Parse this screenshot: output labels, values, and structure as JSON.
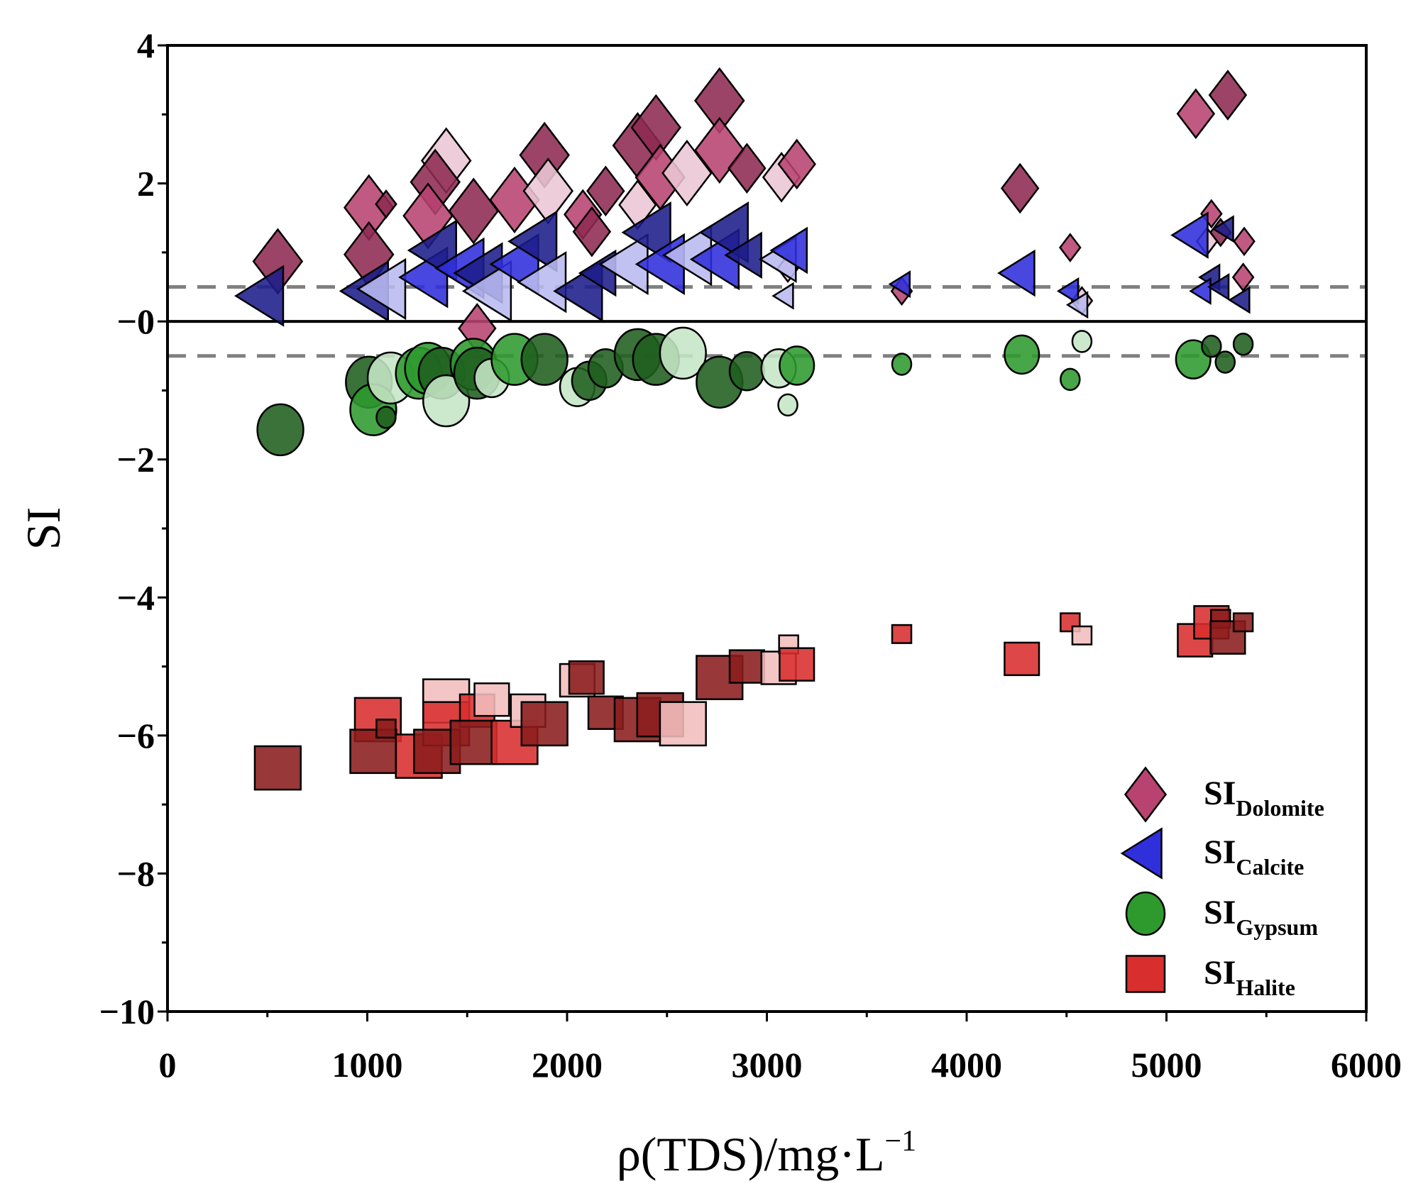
{
  "chart_data": {
    "type": "scatter",
    "title": "",
    "xlabel": "ρ(TDS)/mg·L",
    "xlabel_sup": "−1",
    "ylabel": "SI",
    "xlim": [
      0,
      6000
    ],
    "ylim": [
      -10,
      4
    ],
    "xticks": [
      "0",
      "1000",
      "2000",
      "3000",
      "4000",
      "5000",
      "6000"
    ],
    "yticks": [
      "4",
      "2",
      "−0",
      "−2",
      "−4",
      "−6",
      "−8",
      "−10"
    ],
    "xtick_values": [
      0,
      1000,
      2000,
      3000,
      4000,
      5000,
      6000
    ],
    "ytick_values": [
      4,
      2,
      0,
      -2,
      -4,
      -6,
      -8,
      -10
    ],
    "reference_lines": [
      {
        "y": 0.5,
        "style": "dashed",
        "color": "#808080"
      },
      {
        "y": 0,
        "style": "solid",
        "color": "#000000"
      },
      {
        "y": -0.5,
        "style": "dashed",
        "color": "#808080"
      }
    ],
    "legend_position": "bottom-right",
    "series": [
      {
        "name": "SI",
        "sub": "Dolomite",
        "marker": "diamond",
        "colors": {
          "dark": "#8e2a52",
          "mid": "#b84371",
          "light": "#ebc6d5"
        },
        "points": [
          [
            552,
            0.87,
            "dark",
            "L"
          ],
          [
            1008,
            1.65,
            "mid",
            "L"
          ],
          [
            1094,
            1.7,
            "dark",
            "S"
          ],
          [
            1008,
            0.97,
            "dark",
            "L"
          ],
          [
            1395,
            2.33,
            "light",
            "L"
          ],
          [
            1340,
            2.02,
            "dark",
            "L"
          ],
          [
            1304,
            1.53,
            "mid",
            "L"
          ],
          [
            1532,
            1.6,
            "dark",
            "L"
          ],
          [
            1550,
            -0.1,
            "mid",
            "M"
          ],
          [
            1737,
            1.76,
            "mid",
            "L"
          ],
          [
            1887,
            2.41,
            "dark",
            "L"
          ],
          [
            1905,
            1.89,
            "light",
            "L"
          ],
          [
            2079,
            1.55,
            "mid",
            "M"
          ],
          [
            2124,
            1.3,
            "dark",
            "M"
          ],
          [
            2193,
            1.89,
            "dark",
            "M"
          ],
          [
            2353,
            1.69,
            "light",
            "M"
          ],
          [
            2353,
            2.55,
            "dark",
            "L"
          ],
          [
            2445,
            2.81,
            "dark",
            "L"
          ],
          [
            2466,
            2.09,
            "mid",
            "L"
          ],
          [
            2600,
            2.15,
            "light",
            "L"
          ],
          [
            2763,
            3.2,
            "dark",
            "L"
          ],
          [
            2763,
            2.48,
            "mid",
            "L"
          ],
          [
            2900,
            2.22,
            "dark",
            "M"
          ],
          [
            3073,
            2.09,
            "light",
            "M"
          ],
          [
            3150,
            2.28,
            "mid",
            "M"
          ],
          [
            3105,
            0.77,
            "light",
            "S"
          ],
          [
            3675,
            0.44,
            "mid",
            "S"
          ],
          [
            4267,
            1.93,
            "dark",
            "M"
          ],
          [
            4518,
            1.07,
            "mid",
            "S"
          ],
          [
            4577,
            0.3,
            "light",
            "S"
          ],
          [
            5147,
            3.01,
            "mid",
            "M"
          ],
          [
            5307,
            3.28,
            "dark",
            "M"
          ],
          [
            5225,
            1.56,
            "mid",
            "S"
          ],
          [
            5271,
            1.29,
            "dark",
            "S"
          ],
          [
            5203,
            1.16,
            "light",
            "S"
          ],
          [
            5389,
            1.16,
            "mid",
            "S"
          ],
          [
            5384,
            0.64,
            "mid",
            "S"
          ]
        ]
      },
      {
        "name": "SI",
        "sub": "Calcite",
        "marker": "triangle-left",
        "colors": {
          "dark": "#1c1c8a",
          "mid": "#2f2fdc",
          "light": "#babaf0"
        },
        "points": [
          [
            483,
            0.37,
            "dark",
            "L"
          ],
          [
            1008,
            0.44,
            "dark",
            "L"
          ],
          [
            1094,
            0.47,
            "light",
            "L"
          ],
          [
            1304,
            0.64,
            "mid",
            "L"
          ],
          [
            1349,
            1.03,
            "dark",
            "L"
          ],
          [
            1486,
            0.77,
            "mid",
            "L"
          ],
          [
            1578,
            0.7,
            "dark",
            "L"
          ],
          [
            1623,
            0.44,
            "light",
            "L"
          ],
          [
            1760,
            0.83,
            "mid",
            "L"
          ],
          [
            1851,
            1.16,
            "dark",
            "L"
          ],
          [
            1897,
            0.57,
            "light",
            "L"
          ],
          [
            2079,
            0.44,
            "dark",
            "L"
          ],
          [
            2170,
            0.7,
            "dark",
            "M"
          ],
          [
            2307,
            0.83,
            "light",
            "L"
          ],
          [
            2421,
            1.29,
            "dark",
            "L"
          ],
          [
            2489,
            0.83,
            "mid",
            "L"
          ],
          [
            2625,
            0.96,
            "light",
            "L"
          ],
          [
            2763,
            0.9,
            "mid",
            "L"
          ],
          [
            2809,
            1.29,
            "dark",
            "L"
          ],
          [
            2900,
            0.96,
            "dark",
            "M"
          ],
          [
            3073,
            0.9,
            "light",
            "M"
          ],
          [
            3128,
            1.03,
            "mid",
            "M"
          ],
          [
            3091,
            0.37,
            "light",
            "S"
          ],
          [
            3675,
            0.54,
            "mid",
            "S"
          ],
          [
            4267,
            0.7,
            "mid",
            "M"
          ],
          [
            4518,
            0.44,
            "mid",
            "S"
          ],
          [
            4564,
            0.24,
            "light",
            "S"
          ],
          [
            5134,
            1.25,
            "mid",
            "M"
          ],
          [
            5225,
            0.64,
            "dark",
            "S"
          ],
          [
            5294,
            1.34,
            "dark",
            "S"
          ],
          [
            5180,
            0.44,
            "mid",
            "S"
          ],
          [
            5271,
            0.5,
            "dark",
            "S"
          ],
          [
            5375,
            0.31,
            "dark",
            "S"
          ]
        ]
      },
      {
        "name": "SI",
        "sub": "Gypsum",
        "marker": "circle",
        "colors": {
          "dark": "#1f5e1f",
          "mid": "#2e9a2e",
          "light": "#c6e6c6"
        },
        "points": [
          [
            565,
            -1.57,
            "dark",
            "L"
          ],
          [
            1008,
            -0.88,
            "dark",
            "L"
          ],
          [
            1030,
            -1.28,
            "mid",
            "L"
          ],
          [
            1094,
            -1.39,
            "dark",
            "S"
          ],
          [
            1117,
            -0.82,
            "light",
            "L"
          ],
          [
            1258,
            -0.75,
            "mid",
            "L"
          ],
          [
            1304,
            -0.68,
            "mid",
            "L"
          ],
          [
            1372,
            -0.75,
            "dark",
            "L"
          ],
          [
            1395,
            -1.15,
            "light",
            "L"
          ],
          [
            1532,
            -0.62,
            "mid",
            "L"
          ],
          [
            1550,
            -0.75,
            "dark",
            "L"
          ],
          [
            1623,
            -0.82,
            "light",
            "M"
          ],
          [
            1737,
            -0.55,
            "mid",
            "L"
          ],
          [
            1887,
            -0.55,
            "dark",
            "L"
          ],
          [
            2051,
            -0.95,
            "light",
            "M"
          ],
          [
            2111,
            -0.86,
            "dark",
            "M"
          ],
          [
            2193,
            -0.68,
            "dark",
            "M"
          ],
          [
            2353,
            -0.48,
            "dark",
            "L"
          ],
          [
            2445,
            -0.55,
            "dark",
            "L"
          ],
          [
            2580,
            -0.46,
            "light",
            "L"
          ],
          [
            2763,
            -0.88,
            "dark",
            "L"
          ],
          [
            2900,
            -0.72,
            "dark",
            "M"
          ],
          [
            3059,
            -0.68,
            "light",
            "M"
          ],
          [
            3150,
            -0.64,
            "mid",
            "M"
          ],
          [
            3105,
            -1.21,
            "light",
            "S"
          ],
          [
            3675,
            -0.62,
            "mid",
            "S"
          ],
          [
            4276,
            -0.48,
            "mid",
            "M"
          ],
          [
            4518,
            -0.84,
            "mid",
            "S"
          ],
          [
            4577,
            -0.29,
            "light",
            "S"
          ],
          [
            5134,
            -0.55,
            "mid",
            "M"
          ],
          [
            5225,
            -0.36,
            "dark",
            "S"
          ],
          [
            5294,
            -0.59,
            "dark",
            "S"
          ],
          [
            5384,
            -0.33,
            "dark",
            "S"
          ]
        ]
      },
      {
        "name": "SI",
        "sub": "Halite",
        "marker": "square",
        "colors": {
          "dark": "#8b1c1c",
          "mid": "#d92e2e",
          "light": "#f2bdbd"
        },
        "points": [
          [
            552,
            -6.47,
            "dark",
            "L"
          ],
          [
            1053,
            -5.77,
            "mid",
            "L"
          ],
          [
            1030,
            -6.23,
            "dark",
            "L"
          ],
          [
            1094,
            -5.9,
            "dark",
            "S"
          ],
          [
            1258,
            -6.3,
            "mid",
            "L"
          ],
          [
            1395,
            -5.5,
            "light",
            "L"
          ],
          [
            1395,
            -5.83,
            "mid",
            "L"
          ],
          [
            1349,
            -6.23,
            "dark",
            "L"
          ],
          [
            1550,
            -5.64,
            "mid",
            "M"
          ],
          [
            1623,
            -5.48,
            "light",
            "M"
          ],
          [
            1532,
            -6.1,
            "dark",
            "L"
          ],
          [
            1737,
            -6.1,
            "mid",
            "L"
          ],
          [
            1805,
            -5.64,
            "light",
            "M"
          ],
          [
            1887,
            -5.83,
            "dark",
            "L"
          ],
          [
            2051,
            -5.2,
            "light",
            "M"
          ],
          [
            2097,
            -5.16,
            "dark",
            "M"
          ],
          [
            2193,
            -5.67,
            "dark",
            "M"
          ],
          [
            2353,
            -5.77,
            "dark",
            "L"
          ],
          [
            2466,
            -5.7,
            "dark",
            "L"
          ],
          [
            2580,
            -5.83,
            "light",
            "L"
          ],
          [
            2763,
            -5.16,
            "dark",
            "L"
          ],
          [
            2900,
            -5.0,
            "dark",
            "M"
          ],
          [
            3059,
            -5.02,
            "light",
            "M"
          ],
          [
            3109,
            -4.68,
            "light",
            "S"
          ],
          [
            3150,
            -4.97,
            "mid",
            "M"
          ],
          [
            3675,
            -4.53,
            "mid",
            "S"
          ],
          [
            4276,
            -4.89,
            "mid",
            "M"
          ],
          [
            4518,
            -4.36,
            "mid",
            "S"
          ],
          [
            4577,
            -4.55,
            "light",
            "S"
          ],
          [
            5143,
            -4.62,
            "mid",
            "M"
          ],
          [
            5225,
            -4.36,
            "mid",
            "M"
          ],
          [
            5271,
            -4.31,
            "dark",
            "S"
          ],
          [
            5307,
            -4.58,
            "dark",
            "M"
          ],
          [
            5384,
            -4.36,
            "dark",
            "S"
          ]
        ]
      }
    ]
  }
}
